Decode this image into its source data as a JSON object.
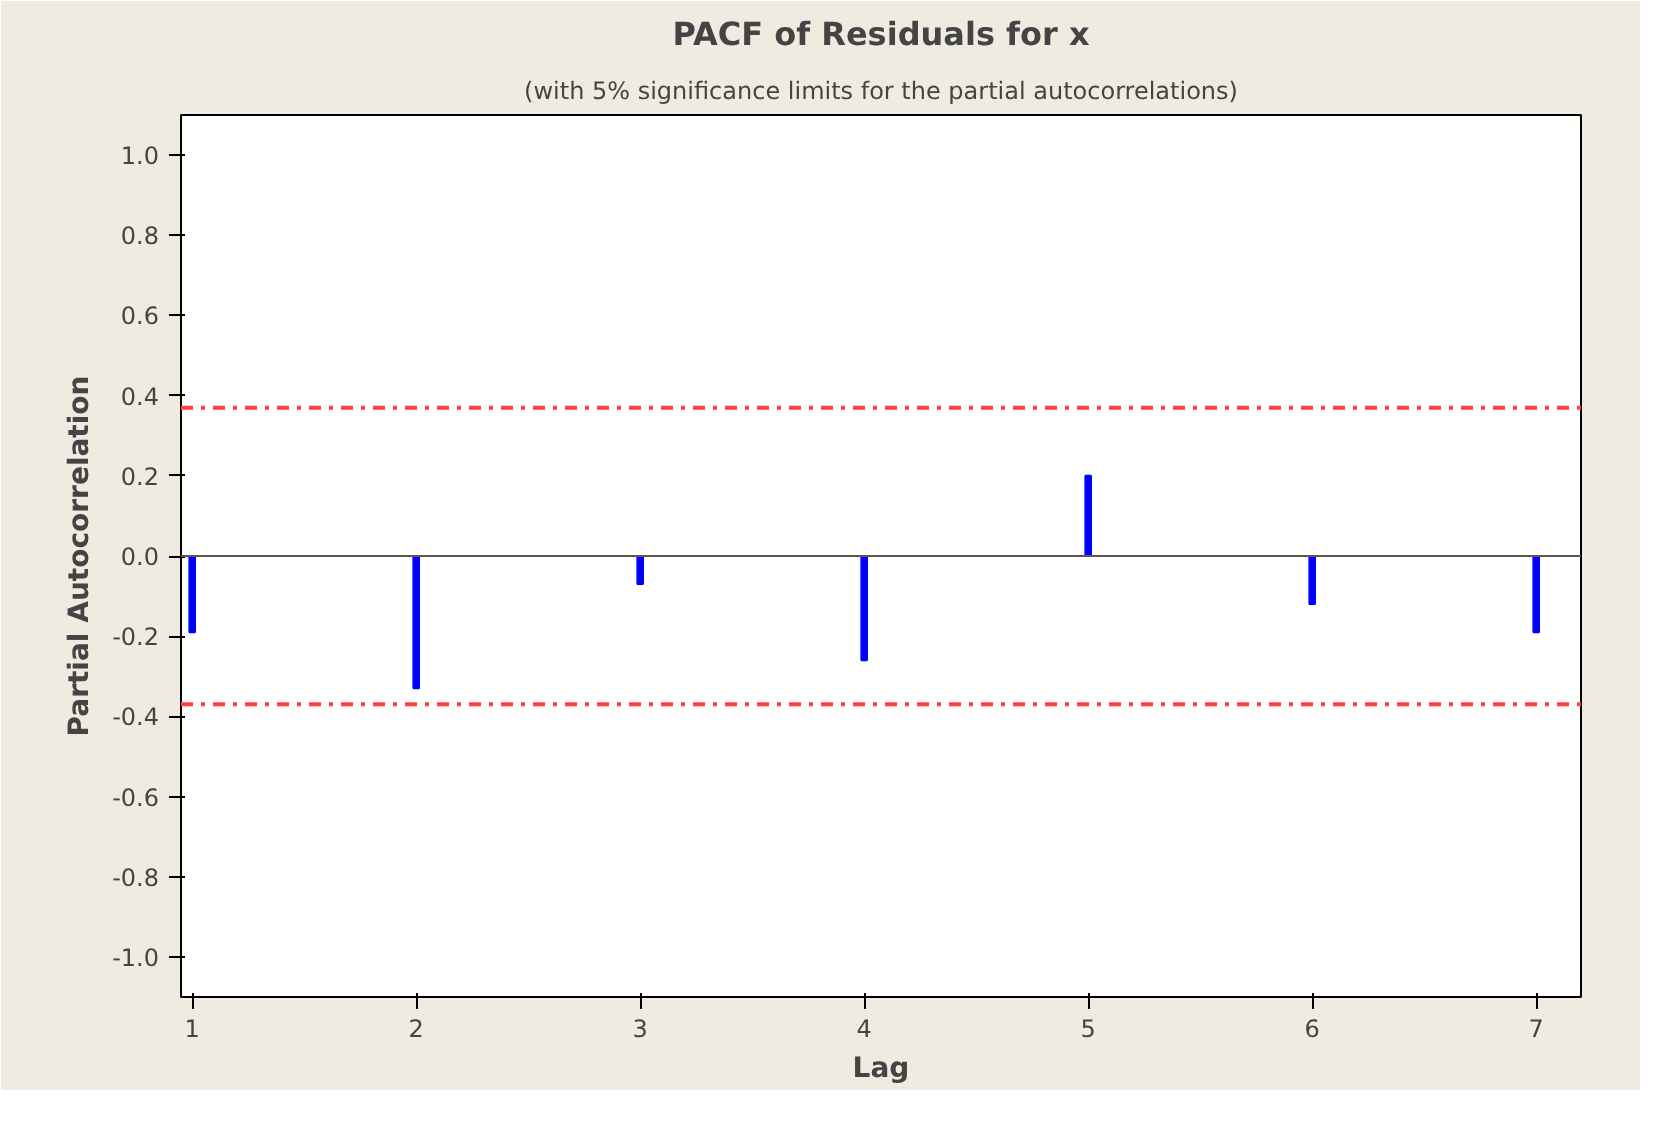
{
  "chart_data": {
    "type": "bar",
    "title": "PACF of Residuals for x",
    "subtitle": "(with 5% significance limits for the partial autocorrelations)",
    "xlabel": "Lag",
    "ylabel": "Partial Autocorrelation",
    "x": [
      1,
      2,
      3,
      4,
      5,
      6,
      7
    ],
    "values": [
      -0.19,
      -0.33,
      -0.07,
      -0.26,
      0.2,
      -0.12,
      -0.19
    ],
    "color": "#0000ff",
    "xlim": [
      0.95,
      7.2
    ],
    "xticks": [
      1,
      2,
      3,
      4,
      5,
      6,
      7
    ],
    "ylim": [
      -1.1,
      1.1
    ],
    "yticks": [
      {
        "value": -1,
        "label": "-1.0"
      },
      {
        "value": -0.8,
        "label": "-0.8"
      },
      {
        "value": -0.6,
        "label": "-0.6"
      },
      {
        "value": -0.4,
        "label": "-0.4"
      },
      {
        "value": -0.2,
        "label": "-0.2"
      },
      {
        "value": 0,
        "label": "0.0"
      },
      {
        "value": 0.2,
        "label": "0.2"
      },
      {
        "value": 0.4,
        "label": "0.4"
      },
      {
        "value": 0.6,
        "label": "0.6"
      },
      {
        "value": 0.8,
        "label": "0.8"
      },
      {
        "value": 1,
        "label": "1.0"
      }
    ],
    "ref_lines": [
      {
        "axis": "y",
        "value": 0,
        "label": null,
        "color": "#555555",
        "line_style": "solid"
      },
      {
        "axis": "y",
        "value": 0.37,
        "label": null,
        "color": "#ff4040",
        "line_style": "dashdot"
      },
      {
        "axis": "y",
        "value": -0.37,
        "label": null,
        "color": "#ff4040",
        "line_style": "dashdot"
      }
    ],
    "grid": false
  }
}
